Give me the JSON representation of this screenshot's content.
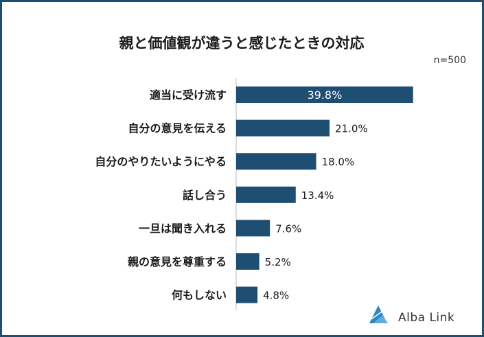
{
  "chart_data": {
    "type": "bar",
    "orientation": "horizontal",
    "title": "親と価値観が違うと感じたときの対応",
    "note": "n=500",
    "categories": [
      "適当に受け流す",
      "自分の意見を伝える",
      "自分のやりたいようにやる",
      "話し合う",
      "一旦は聞き入れる",
      "親の意見を尊重する",
      "何もしない"
    ],
    "values": [
      39.8,
      21.0,
      18.0,
      13.4,
      7.6,
      5.2,
      4.8
    ],
    "labels": [
      "39.8%",
      "21.0%",
      "18.0%",
      "13.4%",
      "7.6%",
      "5.2%",
      "4.8%"
    ],
    "unit": "%",
    "xlim": [
      0,
      40
    ],
    "grid": false,
    "legend": "none",
    "bar_color": "#1f4e73"
  },
  "logo": {
    "text": "Alba Link",
    "accent": "#2e86c1"
  },
  "colors": {
    "frame": "#1f4e73"
  }
}
